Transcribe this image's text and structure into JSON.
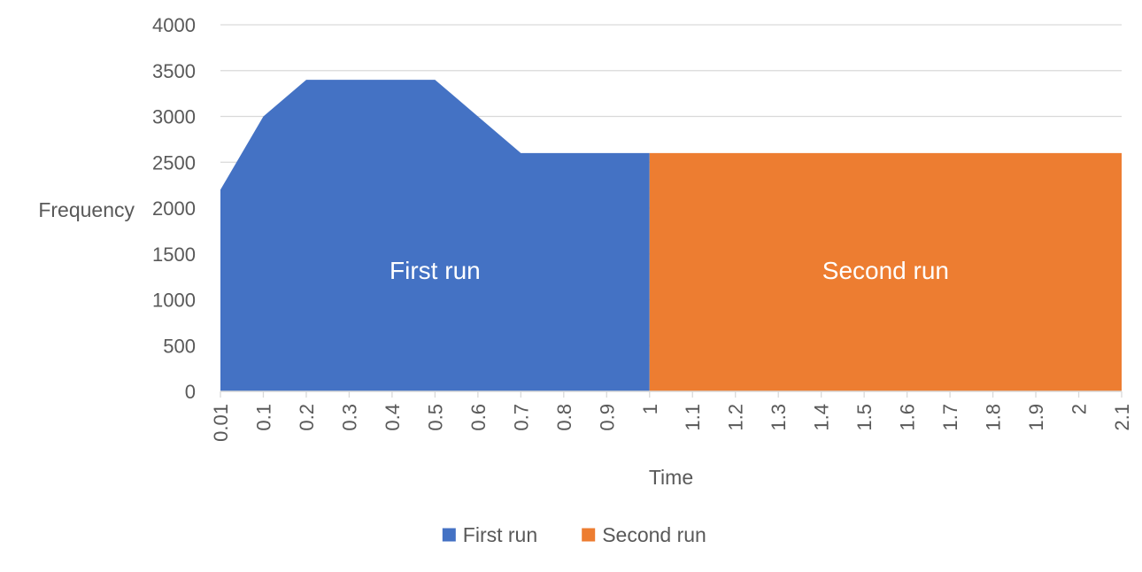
{
  "chart_data": {
    "type": "area",
    "title": "",
    "xlabel": "Time",
    "ylabel": "Frequency",
    "ylim": [
      0,
      4000
    ],
    "yticks": [
      0,
      500,
      1000,
      1500,
      2000,
      2500,
      3000,
      3500,
      4000
    ],
    "grid": true,
    "legend_position": "bottom",
    "categories": [
      "0.01",
      "0.1",
      "0.2",
      "0.3",
      "0.4",
      "0.5",
      "0.6",
      "0.7",
      "0.8",
      "0.9",
      "1",
      "1.1",
      "1.2",
      "1.3",
      "1.4",
      "1.5",
      "1.6",
      "1.7",
      "1.8",
      "1.9",
      "2",
      "2.1"
    ],
    "series": [
      {
        "name": "First run",
        "color": "#4472C4",
        "values": [
          2200,
          3000,
          3400,
          3400,
          3400,
          3400,
          3000,
          2600,
          2600,
          2600,
          2600,
          null,
          null,
          null,
          null,
          null,
          null,
          null,
          null,
          null,
          null,
          null
        ]
      },
      {
        "name": "Second run",
        "color": "#ED7D31",
        "values": [
          null,
          null,
          null,
          null,
          null,
          null,
          null,
          null,
          null,
          null,
          2600,
          2600,
          2600,
          2600,
          2600,
          2600,
          2600,
          2600,
          2600,
          2600,
          2600,
          2600
        ]
      }
    ],
    "annotations": [
      "First run",
      "Second run"
    ]
  }
}
